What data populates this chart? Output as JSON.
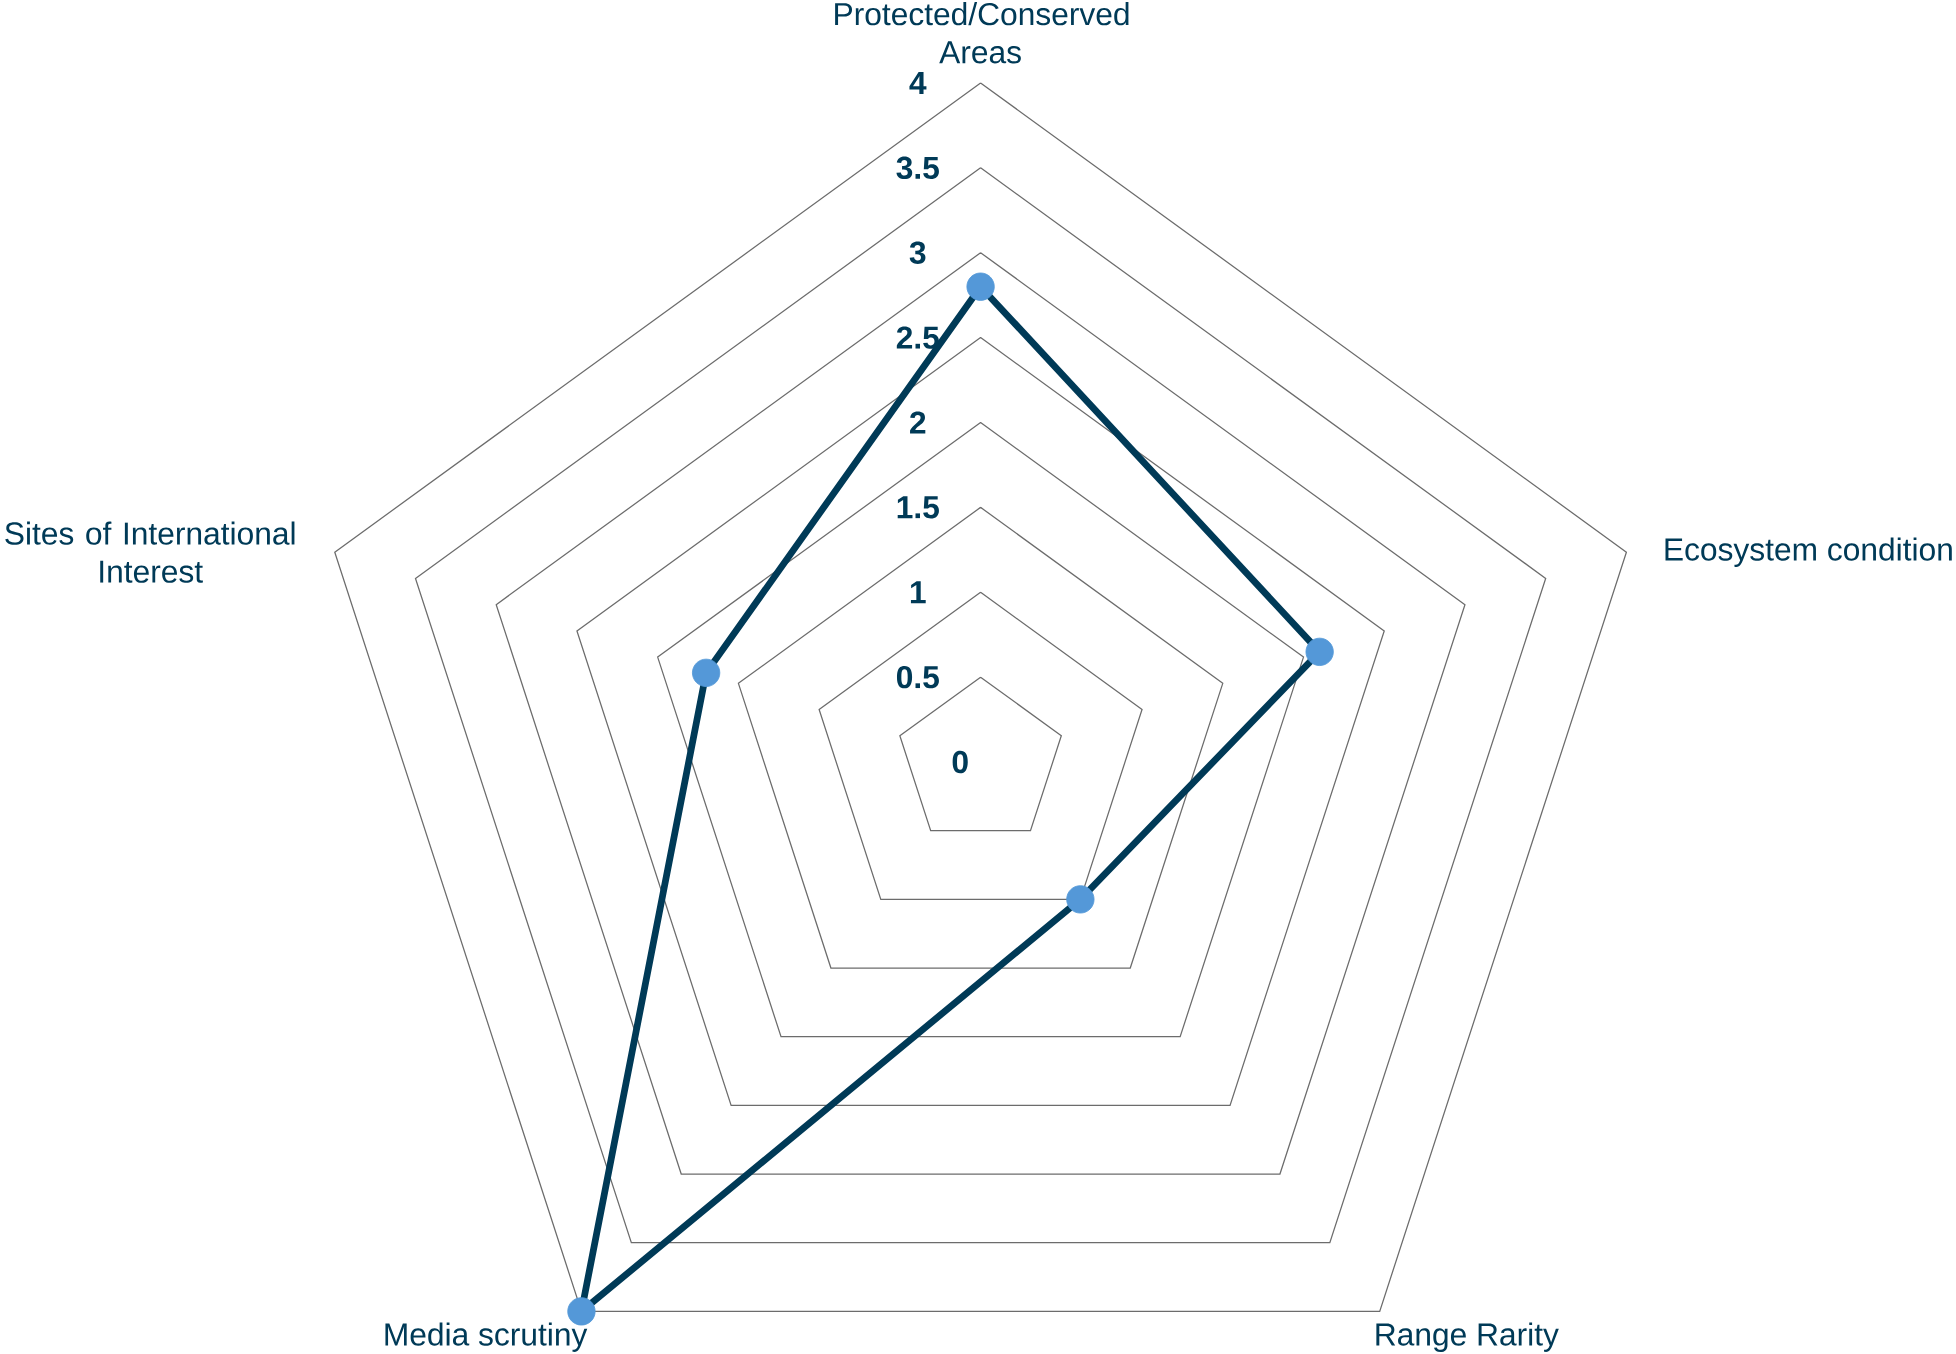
{
  "chart_data": {
    "type": "radar",
    "categories": [
      "Protected/Conserved Areas",
      "Ecosystem condition",
      "Range Rarity",
      "Media scrutiny",
      "Sites of International Interest"
    ],
    "series": [
      {
        "color": "#003a57",
        "values": [
          2.8,
          2.1,
          1.0,
          4.0,
          1.7
        ]
      }
    ],
    "ylim": [
      0,
      4
    ],
    "yticks": [
      {
        "value": 0,
        "label": "0"
      },
      0.5,
      1,
      1.5,
      2,
      2.5,
      3,
      3.5,
      4
    ],
    "grid": true,
    "marker": "circle"
  }
}
